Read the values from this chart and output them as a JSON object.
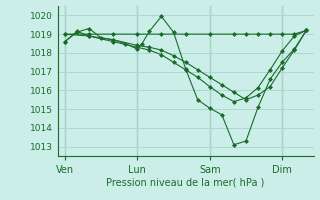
{
  "background_color": "#cceee8",
  "grid_color": "#aad8d2",
  "line_color": "#1a6b2a",
  "marker_color": "#1a6b2a",
  "xlabel": "Pression niveau de la mer( hPa )",
  "ylim": [
    1012.5,
    1020.5
  ],
  "yticks": [
    1013,
    1014,
    1015,
    1016,
    1017,
    1018,
    1019,
    1020
  ],
  "xtick_labels": [
    "Ven",
    "Lun",
    "Sam",
    "Dim"
  ],
  "xtick_positions": [
    0,
    30,
    60,
    90
  ],
  "xlim": [
    -3,
    103
  ],
  "vline_positions": [
    0,
    30,
    60,
    90
  ],
  "series": [
    {
      "x": [
        0,
        5,
        10,
        15,
        20,
        25,
        30,
        32,
        35,
        40,
        45,
        50,
        55,
        60,
        65,
        70,
        75,
        80,
        85,
        90,
        95,
        100
      ],
      "y": [
        1018.6,
        1019.1,
        1019.3,
        1018.8,
        1018.7,
        1018.5,
        1018.2,
        1018.5,
        1019.15,
        1019.95,
        1019.1,
        1017.15,
        1015.5,
        1015.05,
        1014.7,
        1013.1,
        1013.3,
        1015.1,
        1016.6,
        1017.5,
        1018.2,
        1019.2
      ]
    },
    {
      "x": [
        0,
        10,
        20,
        30,
        40,
        50,
        60,
        70,
        75,
        80,
        85,
        90,
        95,
        100
      ],
      "y": [
        1019.0,
        1019.0,
        1019.0,
        1019.0,
        1019.0,
        1019.0,
        1019.0,
        1019.0,
        1019.0,
        1019.0,
        1019.0,
        1019.0,
        1019.0,
        1019.2
      ]
    },
    {
      "x": [
        0,
        10,
        20,
        30,
        35,
        40,
        45,
        50,
        55,
        60,
        65,
        70,
        75,
        80,
        85,
        90,
        95,
        100
      ],
      "y": [
        1019.0,
        1018.9,
        1018.7,
        1018.4,
        1018.3,
        1018.15,
        1017.85,
        1017.5,
        1017.1,
        1016.7,
        1016.3,
        1015.9,
        1015.5,
        1015.75,
        1016.2,
        1017.2,
        1018.15,
        1019.2
      ]
    },
    {
      "x": [
        0,
        5,
        10,
        20,
        30,
        35,
        40,
        45,
        50,
        55,
        60,
        65,
        70,
        75,
        80,
        85,
        90,
        95,
        100
      ],
      "y": [
        1018.6,
        1019.15,
        1018.9,
        1018.6,
        1018.3,
        1018.15,
        1017.9,
        1017.5,
        1017.1,
        1016.7,
        1016.2,
        1015.75,
        1015.4,
        1015.6,
        1016.15,
        1017.1,
        1018.1,
        1018.9,
        1019.2
      ]
    }
  ]
}
